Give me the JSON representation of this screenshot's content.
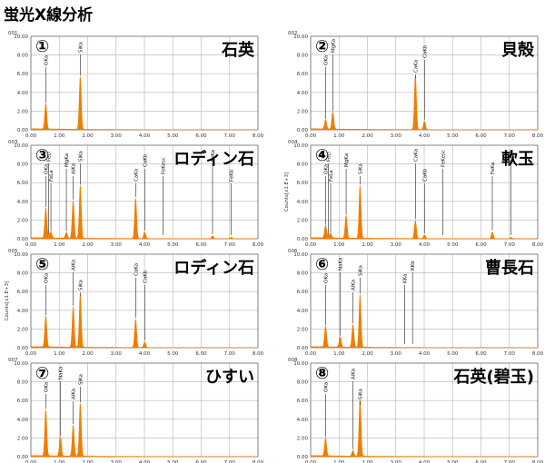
{
  "page_title": "蛍光X線分析",
  "colors": {
    "spectrum": "#f07d00",
    "grid": "#b4b4b4",
    "frame": "#6e6e6e"
  },
  "chart_data": [
    {
      "type": "area",
      "id": "001",
      "circle_num": "①",
      "name": "石英",
      "xlabel": "",
      "ylabel": "",
      "xticks": [
        "0.00",
        "1.00",
        "2.00",
        "3.00",
        "4.00",
        "5.00",
        "6.00",
        "7.00",
        "8.00"
      ],
      "yticks": [
        "0.00",
        "2.00",
        "4.00",
        "6.00",
        "8.00",
        "10.00"
      ],
      "xlim": [
        0,
        8
      ],
      "ylim": [
        0,
        10
      ],
      "peaks": [
        {
          "label": "OKa",
          "x": 0.525,
          "y": 2.7
        },
        {
          "label": "SiKa",
          "x": 1.74,
          "y": 5.6
        }
      ]
    },
    {
      "type": "area",
      "id": "002",
      "circle_num": "②",
      "name": "貝殻",
      "xlabel": "",
      "ylabel": "",
      "xticks": [
        "0.00",
        "1.00",
        "2.00",
        "3.00",
        "4.00",
        "5.00",
        "6.00",
        "7.00",
        "8.00"
      ],
      "yticks": [
        "0.00",
        "2.00",
        "4.00",
        "6.00",
        "8.00",
        "10.00"
      ],
      "xlim": [
        0,
        8
      ],
      "ylim": [
        0,
        10
      ],
      "peaks": [
        {
          "label": "OKa",
          "x": 0.525,
          "y": 1.0
        },
        {
          "label": "MgKa",
          "x": 0.78,
          "y": 1.8
        },
        {
          "label": "CaKa",
          "x": 3.69,
          "y": 5.8
        },
        {
          "label": "CaKb",
          "x": 4.01,
          "y": 0.9
        }
      ]
    },
    {
      "type": "area",
      "id": "003",
      "circle_num": "③",
      "name": "ロディン石",
      "xlabel": "",
      "ylabel": "",
      "xticks": [
        "0.00",
        "1.00",
        "2.00",
        "3.00",
        "4.00",
        "5.00",
        "6.00",
        "7.00",
        "8.00"
      ],
      "yticks": [
        "0.00",
        "2.00",
        "4.00",
        "6.00",
        "8.00",
        "10.00"
      ],
      "xlim": [
        0,
        8
      ],
      "ylim": [
        0,
        10
      ],
      "peaks": [
        {
          "label": "OKa",
          "x": 0.525,
          "y": 3.2
        },
        {
          "label": "FeLl",
          "x": 0.62,
          "y": 0.4
        },
        {
          "label": "FeLa",
          "x": 0.705,
          "y": 0.6
        },
        {
          "label": "MgKa",
          "x": 1.25,
          "y": 0.6
        },
        {
          "label": "AlKa",
          "x": 1.49,
          "y": 4.0
        },
        {
          "label": "SiKa",
          "x": 1.74,
          "y": 5.6
        },
        {
          "label": "CaKa",
          "x": 3.69,
          "y": 4.3
        },
        {
          "label": "CaKb",
          "x": 4.01,
          "y": 0.7
        },
        {
          "label": "FeKesc",
          "x": 4.66,
          "y": 0
        },
        {
          "label": "FeKa",
          "x": 6.4,
          "y": 0.3
        },
        {
          "label": "FeKb",
          "x": 7.06,
          "y": 0.15
        }
      ]
    },
    {
      "type": "area",
      "id": "004",
      "circle_num": "④",
      "name": "軟玉",
      "xlabel": "",
      "ylabel": "Counts[x1.E+3]",
      "xticks": [
        "0.00",
        "1.00",
        "2.00",
        "3.00",
        "4.00",
        "5.00",
        "6.00",
        "7.00",
        "8.00"
      ],
      "yticks": [
        "0.00",
        "2.00",
        "4.00",
        "6.00",
        "8.00",
        "10.00"
      ],
      "xlim": [
        0,
        8
      ],
      "ylim": [
        0,
        10
      ],
      "peaks": [
        {
          "label": "OKa",
          "x": 0.525,
          "y": 1.3
        },
        {
          "label": "FeLl",
          "x": 0.62,
          "y": 0.3
        },
        {
          "label": "FeLa",
          "x": 0.705,
          "y": 0.5
        },
        {
          "label": "MgKa",
          "x": 1.25,
          "y": 2.4
        },
        {
          "label": "SiKa",
          "x": 1.74,
          "y": 5.6
        },
        {
          "label": "CaKa",
          "x": 3.69,
          "y": 1.9
        },
        {
          "label": "CaKb",
          "x": 4.01,
          "y": 0.4
        },
        {
          "label": "FeKesc",
          "x": 4.66,
          "y": 0
        },
        {
          "label": "FeKa",
          "x": 6.4,
          "y": 0.7
        },
        {
          "label": "FeKb",
          "x": 7.06,
          "y": 0.15
        }
      ]
    },
    {
      "type": "area",
      "id": "005",
      "circle_num": "⑤",
      "name": "ロディン石",
      "xlabel": "",
      "ylabel": "Counts[x1.E+3]",
      "xticks": [
        "0.00",
        "1.00",
        "2.00",
        "3.00",
        "4.00",
        "5.00",
        "6.00",
        "7.00",
        "8.00"
      ],
      "yticks": [
        "0.00",
        "2.00",
        "4.00",
        "6.00",
        "8.00",
        "10.00"
      ],
      "xlim": [
        0,
        8
      ],
      "ylim": [
        0,
        10
      ],
      "peaks": [
        {
          "label": "OKa",
          "x": 0.525,
          "y": 3.3
        },
        {
          "label": "AlKa",
          "x": 1.49,
          "y": 4.3
        },
        {
          "label": "SiKa",
          "x": 1.74,
          "y": 5.6
        },
        {
          "label": "CaKa",
          "x": 3.69,
          "y": 3.0
        },
        {
          "label": "CaKb",
          "x": 4.01,
          "y": 0.6
        }
      ]
    },
    {
      "type": "area",
      "id": "006",
      "circle_num": "⑥",
      "name": "曹長石",
      "xlabel": "",
      "ylabel": "",
      "xticks": [
        "0.00",
        "1.00",
        "2.00",
        "3.00",
        "4.00",
        "5.00",
        "6.00",
        "7.00",
        "8.00"
      ],
      "yticks": [
        "0.00",
        "2.00",
        "4.00",
        "6.00",
        "8.00",
        "10.00"
      ],
      "xlim": [
        0,
        8
      ],
      "ylim": [
        0,
        10
      ],
      "peaks": [
        {
          "label": "OKa",
          "x": 0.525,
          "y": 2.2
        },
        {
          "label": "NaKa",
          "x": 1.04,
          "y": 1.1
        },
        {
          "label": "AlKa",
          "x": 1.49,
          "y": 2.4
        },
        {
          "label": "SiKa",
          "x": 1.74,
          "y": 5.6
        },
        {
          "label": "KKa",
          "x": 3.31,
          "y": 0
        },
        {
          "label": "KKb",
          "x": 3.59,
          "y": 0
        }
      ]
    },
    {
      "type": "area",
      "id": "007",
      "circle_num": "⑦",
      "name": "ひすい",
      "xlabel": "keV",
      "ylabel": "",
      "xticks": [
        "0.00",
        "1.00",
        "2.00",
        "3.00",
        "4.00",
        "5.00",
        "6.00",
        "7.00",
        "8.00"
      ],
      "yticks": [
        "0.00",
        "2.00",
        "4.00",
        "6.00",
        "8.00",
        "10.00"
      ],
      "xlim": [
        0,
        8
      ],
      "ylim": [
        0,
        10
      ],
      "peaks": [
        {
          "label": "OKa",
          "x": 0.525,
          "y": 4.9
        },
        {
          "label": "NaKa",
          "x": 1.04,
          "y": 2.0
        },
        {
          "label": "AlKa",
          "x": 1.49,
          "y": 3.3
        },
        {
          "label": "SiKa",
          "x": 1.74,
          "y": 5.6
        }
      ]
    },
    {
      "type": "area",
      "id": "008",
      "circle_num": "⑧",
      "name": "石英(碧玉)",
      "xlabel": "keV",
      "ylabel": "",
      "xticks": [
        "0.00",
        "1.00",
        "2.00",
        "3.00",
        "4.00",
        "5.00",
        "6.00",
        "7.00",
        "8.00"
      ],
      "yticks": [
        "0.00",
        "2.00",
        "4.00",
        "6.00",
        "8.00",
        "10.00"
      ],
      "xlim": [
        0,
        8
      ],
      "ylim": [
        0,
        10
      ],
      "peaks": [
        {
          "label": "OKa",
          "x": 0.525,
          "y": 1.9
        },
        {
          "label": "AlKa",
          "x": 1.49,
          "y": 0.6
        },
        {
          "label": "SiKa",
          "x": 1.74,
          "y": 6.1
        }
      ]
    }
  ]
}
